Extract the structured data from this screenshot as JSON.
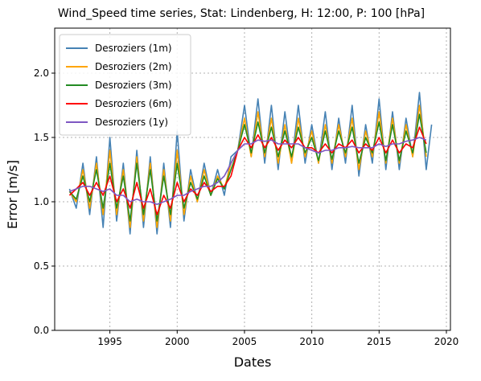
{
  "chart_data": {
    "type": "line",
    "title": "Wind_Speed time series, Stat: Lindenberg, H: 12:00, P: 100 [hPa]",
    "xlabel": "Dates",
    "ylabel": "Error [m/s]",
    "xlim": [
      1990.9,
      2020.3
    ],
    "ylim": [
      0.0,
      2.35
    ],
    "xticks": [
      1995,
      2000,
      2005,
      2010,
      2015,
      2020
    ],
    "xtick_labels": [
      "1995",
      "2000",
      "2005",
      "2010",
      "2015",
      "2020"
    ],
    "yticks": [
      0.0,
      0.5,
      1.0,
      1.5,
      2.0
    ],
    "ytick_labels": [
      "0.0",
      "0.5",
      "1.0",
      "1.5",
      "2.0"
    ],
    "grid": true,
    "legend_position": "top-left",
    "series": [
      {
        "name": "Desroziers (1m)",
        "color": "#4682b4",
        "x": [
          1992.0,
          1992.5,
          1993.0,
          1993.5,
          1994.0,
          1994.5,
          1995.0,
          1995.5,
          1996.0,
          1996.5,
          1997.0,
          1997.5,
          1998.0,
          1998.5,
          1999.0,
          1999.5,
          2000.0,
          2000.5,
          2001.0,
          2001.5,
          2002.0,
          2002.5,
          2003.0,
          2003.5,
          2004.0,
          2004.5,
          2005.0,
          2005.5,
          2006.0,
          2006.5,
          2007.0,
          2007.5,
          2008.0,
          2008.5,
          2009.0,
          2009.5,
          2010.0,
          2010.5,
          2011.0,
          2011.5,
          2012.0,
          2012.5,
          2013.0,
          2013.5,
          2014.0,
          2014.5,
          2015.0,
          2015.5,
          2016.0,
          2016.5,
          2017.0,
          2017.5,
          2018.0,
          2018.5,
          2018.9
        ],
        "y": [
          1.1,
          0.95,
          1.3,
          0.9,
          1.35,
          0.8,
          1.5,
          0.85,
          1.3,
          0.75,
          1.4,
          0.8,
          1.35,
          0.75,
          1.3,
          0.8,
          1.55,
          0.85,
          1.25,
          1.0,
          1.3,
          1.05,
          1.25,
          1.05,
          1.35,
          1.4,
          1.75,
          1.35,
          1.8,
          1.3,
          1.75,
          1.25,
          1.7,
          1.3,
          1.75,
          1.3,
          1.6,
          1.3,
          1.7,
          1.25,
          1.65,
          1.3,
          1.75,
          1.2,
          1.6,
          1.3,
          1.8,
          1.25,
          1.7,
          1.25,
          1.65,
          1.35,
          1.85,
          1.25,
          1.6
        ]
      },
      {
        "name": "Desroziers (2m)",
        "color": "#ffa500",
        "x": [
          1992.0,
          1992.5,
          1993.0,
          1993.5,
          1994.0,
          1994.5,
          1995.0,
          1995.5,
          1996.0,
          1996.5,
          1997.0,
          1997.5,
          1998.0,
          1998.5,
          1999.0,
          1999.5,
          2000.0,
          2000.5,
          2001.0,
          2001.5,
          2002.0,
          2002.5,
          2003.0,
          2003.5,
          2004.0,
          2004.5,
          2005.0,
          2005.5,
          2006.0,
          2006.5,
          2007.0,
          2007.5,
          2008.0,
          2008.5,
          2009.0,
          2009.5,
          2010.0,
          2010.5,
          2011.0,
          2011.5,
          2012.0,
          2012.5,
          2013.0,
          2013.5,
          2014.0,
          2014.5,
          2015.0,
          2015.5,
          2016.0,
          2016.5,
          2017.0,
          2017.5,
          2018.0,
          2018.5
        ],
        "y": [
          1.08,
          1.0,
          1.25,
          0.95,
          1.3,
          0.9,
          1.4,
          0.9,
          1.25,
          0.8,
          1.35,
          0.85,
          1.3,
          0.8,
          1.25,
          0.85,
          1.4,
          0.9,
          1.2,
          1.0,
          1.25,
          1.05,
          1.2,
          1.1,
          1.3,
          1.4,
          1.65,
          1.35,
          1.7,
          1.35,
          1.65,
          1.3,
          1.6,
          1.3,
          1.65,
          1.35,
          1.55,
          1.3,
          1.6,
          1.3,
          1.6,
          1.35,
          1.65,
          1.25,
          1.55,
          1.35,
          1.7,
          1.3,
          1.65,
          1.3,
          1.6,
          1.35,
          1.75,
          1.35
        ]
      },
      {
        "name": "Desroziers (3m)",
        "color": "#228b22",
        "x": [
          1992.0,
          1992.5,
          1993.0,
          1993.5,
          1994.0,
          1994.5,
          1995.0,
          1995.5,
          1996.0,
          1996.5,
          1997.0,
          1997.5,
          1998.0,
          1998.5,
          1999.0,
          1999.5,
          2000.0,
          2000.5,
          2001.0,
          2001.5,
          2002.0,
          2002.5,
          2003.0,
          2003.5,
          2004.0,
          2004.5,
          2005.0,
          2005.5,
          2006.0,
          2006.5,
          2007.0,
          2007.5,
          2008.0,
          2008.5,
          2009.0,
          2009.5,
          2010.0,
          2010.5,
          2011.0,
          2011.5,
          2012.0,
          2012.5,
          2013.0,
          2013.5,
          2014.0,
          2014.5,
          2015.0,
          2015.5,
          2016.0,
          2016.5,
          2017.0,
          2017.5,
          2018.0,
          2018.5
        ],
        "y": [
          1.08,
          1.02,
          1.2,
          1.0,
          1.25,
          0.95,
          1.3,
          0.95,
          1.2,
          0.85,
          1.3,
          0.9,
          1.25,
          0.85,
          1.2,
          0.9,
          1.3,
          0.95,
          1.15,
          1.02,
          1.2,
          1.05,
          1.18,
          1.1,
          1.25,
          1.4,
          1.6,
          1.38,
          1.62,
          1.38,
          1.58,
          1.35,
          1.55,
          1.35,
          1.58,
          1.38,
          1.5,
          1.32,
          1.55,
          1.33,
          1.55,
          1.38,
          1.58,
          1.3,
          1.5,
          1.38,
          1.62,
          1.32,
          1.6,
          1.32,
          1.55,
          1.38,
          1.68,
          1.38
        ]
      },
      {
        "name": "Desroziers (6m)",
        "color": "#ff0000",
        "x": [
          1992.0,
          1992.5,
          1993.0,
          1993.5,
          1994.0,
          1994.5,
          1995.0,
          1995.5,
          1996.0,
          1996.5,
          1997.0,
          1997.5,
          1998.0,
          1998.5,
          1999.0,
          1999.5,
          2000.0,
          2000.5,
          2001.0,
          2001.5,
          2002.0,
          2002.5,
          2003.0,
          2003.5,
          2004.0,
          2004.5,
          2005.0,
          2005.5,
          2006.0,
          2006.5,
          2007.0,
          2007.5,
          2008.0,
          2008.5,
          2009.0,
          2009.5,
          2010.0,
          2010.5,
          2011.0,
          2011.5,
          2012.0,
          2012.5,
          2013.0,
          2013.5,
          2014.0,
          2014.5,
          2015.0,
          2015.5,
          2016.0,
          2016.5,
          2017.0,
          2017.5,
          2018.0,
          2018.5
        ],
        "y": [
          1.05,
          1.1,
          1.15,
          1.05,
          1.15,
          1.05,
          1.2,
          1.0,
          1.1,
          0.95,
          1.15,
          0.95,
          1.1,
          0.9,
          1.05,
          0.95,
          1.15,
          1.0,
          1.1,
          1.05,
          1.15,
          1.08,
          1.12,
          1.12,
          1.2,
          1.4,
          1.5,
          1.42,
          1.52,
          1.42,
          1.5,
          1.4,
          1.48,
          1.42,
          1.5,
          1.42,
          1.42,
          1.38,
          1.45,
          1.38,
          1.45,
          1.42,
          1.48,
          1.38,
          1.45,
          1.4,
          1.5,
          1.38,
          1.48,
          1.38,
          1.45,
          1.42,
          1.58,
          1.45
        ]
      },
      {
        "name": "Desroziers (1y)",
        "color": "#7e57c2",
        "x": [
          1992.0,
          1992.5,
          1993.0,
          1993.5,
          1994.0,
          1994.5,
          1995.0,
          1995.5,
          1996.0,
          1996.5,
          1997.0,
          1997.5,
          1998.0,
          1998.5,
          1999.0,
          1999.5,
          2000.0,
          2000.5,
          2001.0,
          2001.5,
          2002.0,
          2002.5,
          2003.0,
          2003.5,
          2004.0,
          2004.5,
          2005.0,
          2005.5,
          2006.0,
          2006.5,
          2007.0,
          2007.5,
          2008.0,
          2008.5,
          2009.0,
          2009.5,
          2010.0,
          2010.5,
          2011.0,
          2011.5,
          2012.0,
          2012.5,
          2013.0,
          2013.5,
          2014.0,
          2014.5,
          2015.0,
          2015.5,
          2016.0,
          2016.5,
          2017.0,
          2017.5,
          2018.0,
          2018.5
        ],
        "y": [
          1.08,
          1.1,
          1.12,
          1.12,
          1.1,
          1.08,
          1.1,
          1.05,
          1.05,
          1.0,
          1.02,
          1.0,
          1.0,
          0.98,
          1.0,
          1.02,
          1.05,
          1.05,
          1.08,
          1.1,
          1.12,
          1.12,
          1.15,
          1.2,
          1.3,
          1.4,
          1.45,
          1.45,
          1.48,
          1.47,
          1.48,
          1.45,
          1.45,
          1.45,
          1.45,
          1.42,
          1.4,
          1.38,
          1.4,
          1.4,
          1.42,
          1.42,
          1.43,
          1.42,
          1.42,
          1.42,
          1.45,
          1.43,
          1.45,
          1.45,
          1.47,
          1.48,
          1.5,
          1.48
        ]
      }
    ]
  }
}
